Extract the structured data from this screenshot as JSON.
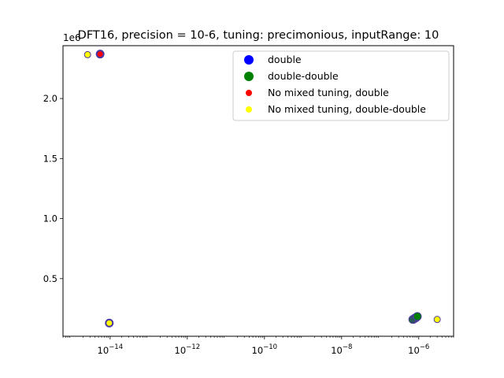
{
  "chart_data": {
    "type": "scatter",
    "title": "DFT16, precision = 10-6, tuning: precimonious, inputRange: 10",
    "xlabel": "",
    "ylabel": "",
    "x_scale": "log",
    "xlim": [
      6e-16,
      8e-06
    ],
    "ylim": [
      20000,
      2440000
    ],
    "y_offset_label": "1e6",
    "y_ticks": [
      0.5,
      1.0,
      1.5,
      2.0
    ],
    "y_tick_labels": [
      "0.5",
      "1.0",
      "1.5",
      "2.0"
    ],
    "y_tick_multiplier": 1000000,
    "x_ticks": [
      1e-14,
      1e-12,
      1e-10,
      1e-08,
      1e-06
    ],
    "x_tick_labels": [
      {
        "base": "10",
        "exp": "−14"
      },
      {
        "base": "10",
        "exp": "−12"
      },
      {
        "base": "10",
        "exp": "−10"
      },
      {
        "base": "10",
        "exp": "−8"
      },
      {
        "base": "10",
        "exp": "−6"
      }
    ],
    "grid": false,
    "legend_position": "top-right",
    "series": [
      {
        "name": "double",
        "color": "#0000ff",
        "edge": "#4b3a9e",
        "size": 10,
        "points": [
          [
            5.5e-15,
            2370000
          ],
          [
            9.5e-15,
            130000
          ],
          [
            7.2e-07,
            160000
          ],
          [
            7.8e-07,
            170000
          ],
          [
            8.5e-07,
            175000
          ],
          [
            9e-07,
            182000
          ]
        ]
      },
      {
        "name": "double-double",
        "color": "#008000",
        "edge": "#4b3a9e",
        "size": 10,
        "points": [
          [
            7e-07,
            160000
          ],
          [
            7.6e-07,
            165000
          ],
          [
            8.2e-07,
            172000
          ],
          [
            8.8e-07,
            180000
          ],
          [
            9.2e-07,
            185000
          ]
        ]
      },
      {
        "name": "No mixed tuning, double",
        "color": "#ff0000",
        "edge": "#4b3a9e",
        "size": 8,
        "points": [
          [
            5.5e-15,
            2370000
          ]
        ]
      },
      {
        "name": "No mixed tuning, double-double",
        "color": "#ffff00",
        "edge": "#4b3a9e",
        "size": 8,
        "points": [
          [
            2.6e-15,
            2365000
          ],
          [
            9.5e-15,
            130000
          ],
          [
            3e-06,
            160000
          ]
        ]
      }
    ]
  }
}
